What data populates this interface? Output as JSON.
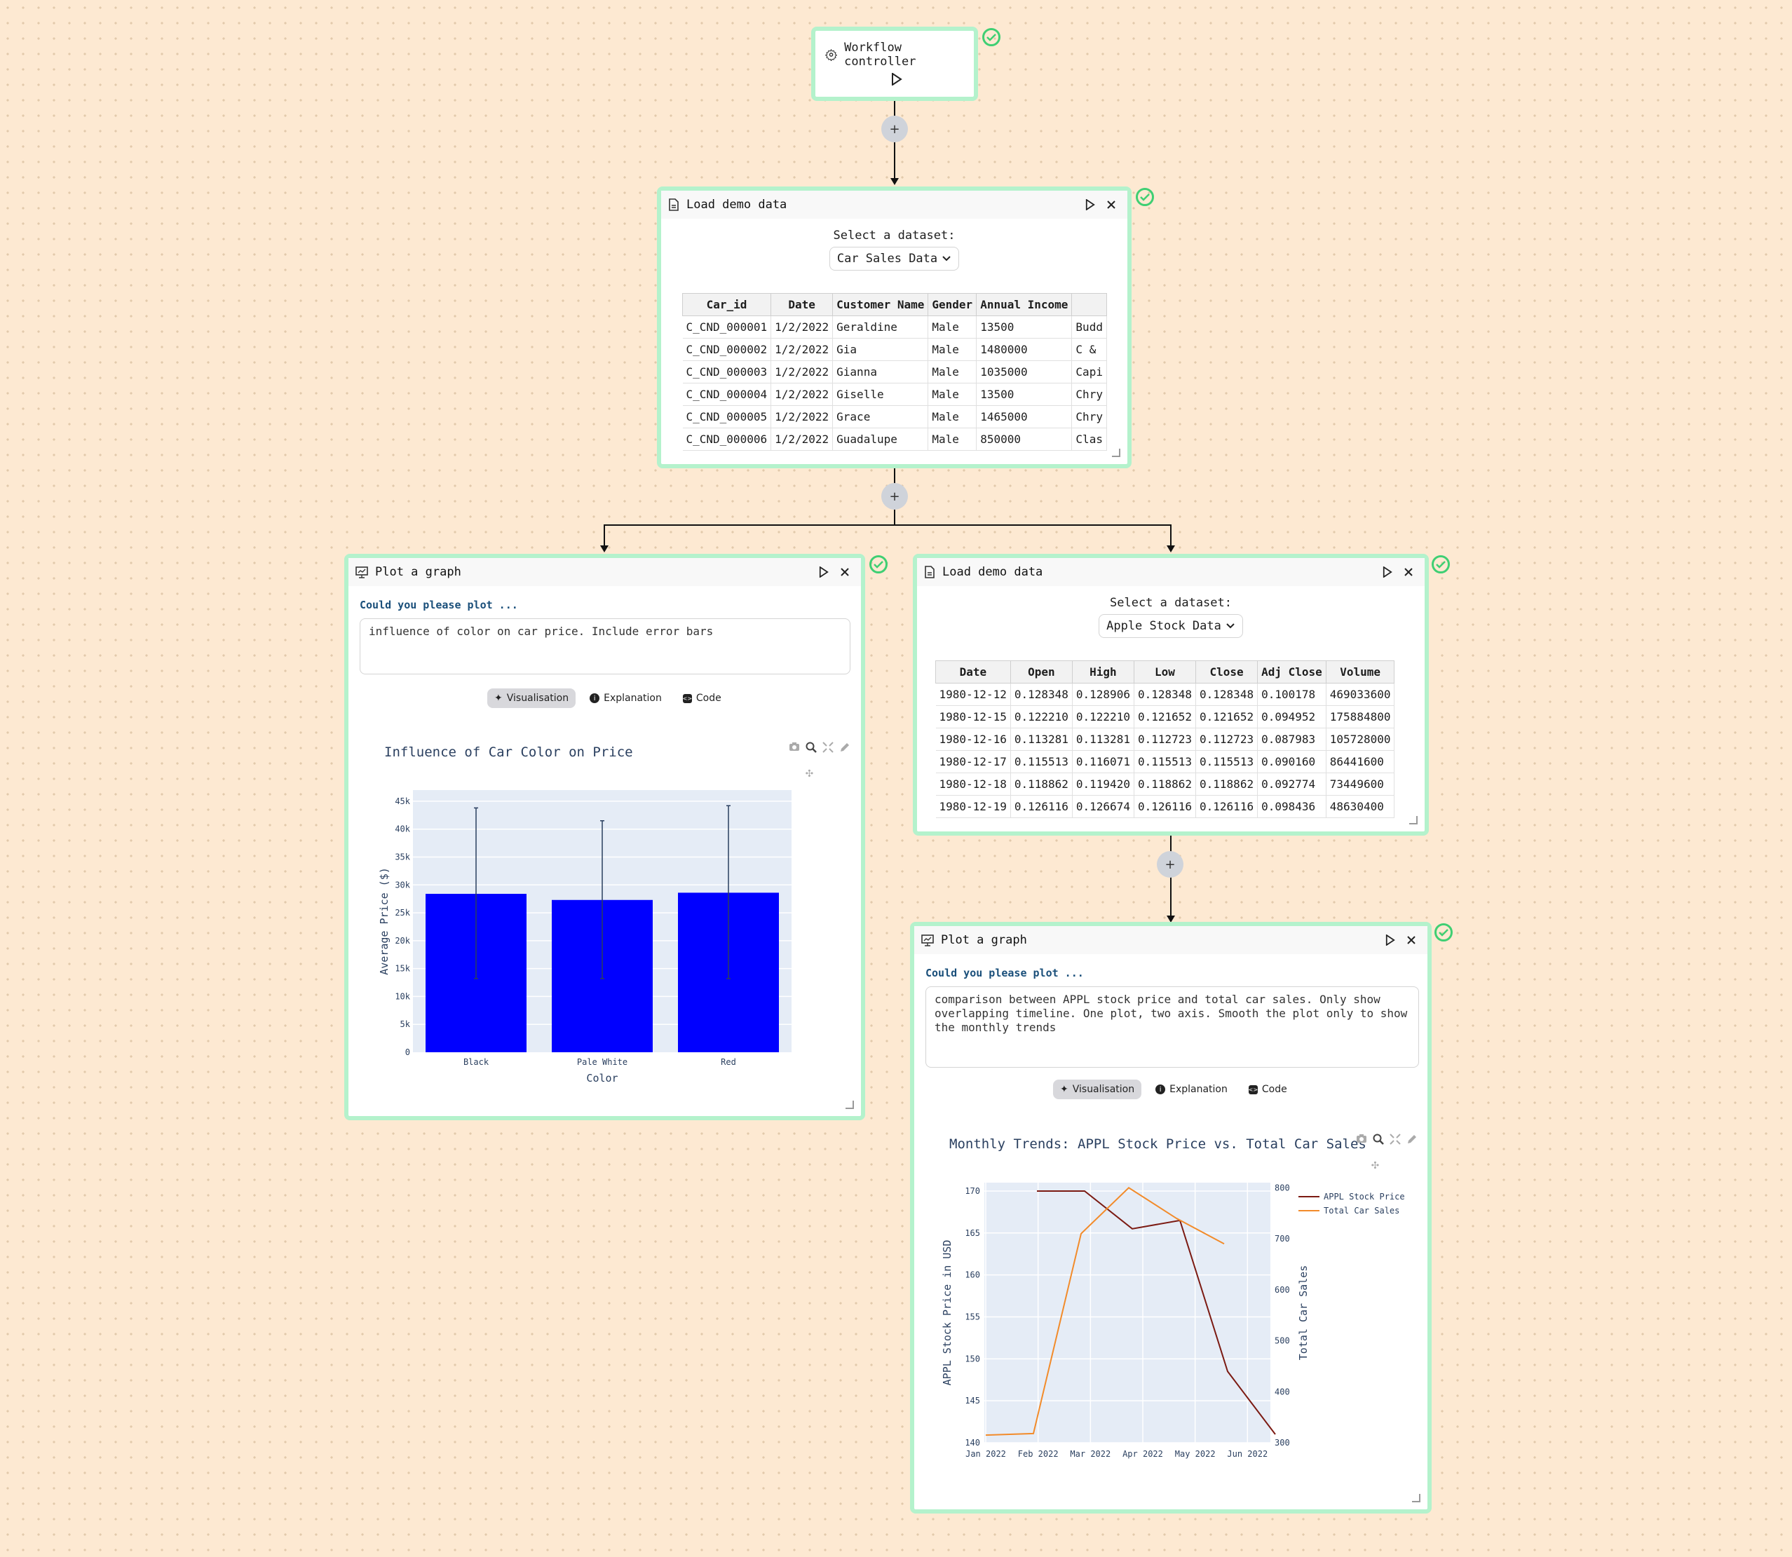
{
  "workflow": {
    "title": "Workflow controller"
  },
  "load1": {
    "title": "Load demo data",
    "select_label": "Select a dataset:",
    "selected": "Car Sales Data",
    "columns": [
      "Car_id",
      "Date",
      "Customer Name",
      "Gender",
      "Annual Income",
      ""
    ],
    "rows": [
      [
        "C_CND_000001",
        "1/2/2022",
        "Geraldine",
        "Male",
        "13500",
        "Budd"
      ],
      [
        "C_CND_000002",
        "1/2/2022",
        "Gia",
        "Male",
        "1480000",
        "C &"
      ],
      [
        "C_CND_000003",
        "1/2/2022",
        "Gianna",
        "Male",
        "1035000",
        "Capi"
      ],
      [
        "C_CND_000004",
        "1/2/2022",
        "Giselle",
        "Male",
        "13500",
        "Chry"
      ],
      [
        "C_CND_000005",
        "1/2/2022",
        "Grace",
        "Male",
        "1465000",
        "Chry"
      ],
      [
        "C_CND_000006",
        "1/2/2022",
        "Guadalupe",
        "Male",
        "850000",
        "Clas"
      ]
    ]
  },
  "plot1": {
    "title": "Plot a graph",
    "prompt_label": "Could you please plot ...",
    "prompt": "influence of color on car price. Include error bars",
    "tabs": [
      "Visualisation",
      "Explanation",
      "Code"
    ]
  },
  "load2": {
    "title": "Load demo data",
    "select_label": "Select a dataset:",
    "selected": "Apple Stock Data",
    "columns": [
      "Date",
      "Open",
      "High",
      "Low",
      "Close",
      "Adj Close",
      "Volume"
    ],
    "rows": [
      [
        "1980-12-12",
        "0.128348",
        "0.128906",
        "0.128348",
        "0.128348",
        "0.100178",
        "469033600"
      ],
      [
        "1980-12-15",
        "0.122210",
        "0.122210",
        "0.121652",
        "0.121652",
        "0.094952",
        "175884800"
      ],
      [
        "1980-12-16",
        "0.113281",
        "0.113281",
        "0.112723",
        "0.112723",
        "0.087983",
        "105728000"
      ],
      [
        "1980-12-17",
        "0.115513",
        "0.116071",
        "0.115513",
        "0.115513",
        "0.090160",
        "86441600"
      ],
      [
        "1980-12-18",
        "0.118862",
        "0.119420",
        "0.118862",
        "0.118862",
        "0.092774",
        "73449600"
      ],
      [
        "1980-12-19",
        "0.126116",
        "0.126674",
        "0.126116",
        "0.126116",
        "0.098436",
        "48630400"
      ]
    ]
  },
  "plot2": {
    "title": "Plot a graph",
    "prompt_label": "Could you please plot ...",
    "prompt": "comparison between APPL stock price and total car sales. Only show overlapping timeline. One plot, two axis. Smooth the plot only to show the monthly trends",
    "tabs": [
      "Visualisation",
      "Explanation",
      "Code"
    ]
  },
  "colors": {
    "node_border": "#b4f2cc",
    "check": "#3fcf73",
    "bar": "#0000ff",
    "stock": "#7b1a12",
    "sales": "#f28b2a",
    "plot_bg": "#e5ecf6"
  },
  "chart_data": [
    {
      "type": "bar",
      "title": "Influence of Car Color on Price",
      "categories": [
        "Black",
        "Pale White",
        "Red"
      ],
      "values": [
        28400,
        27300,
        28600
      ],
      "error_upper": [
        43800,
        41500,
        44200
      ],
      "error_lower": [
        13200,
        13200,
        13200
      ],
      "xlabel": "Color",
      "ylabel": "Average Price ($)",
      "ylim": [
        0,
        47000
      ],
      "yticks": [
        "0",
        "5k",
        "10k",
        "15k",
        "20k",
        "25k",
        "30k",
        "35k",
        "40k",
        "45k"
      ]
    },
    {
      "type": "line",
      "title": "Monthly Trends: APPL Stock Price vs. Total Car Sales",
      "x": [
        "Jan 2022",
        "Feb 2022",
        "Mar 2022",
        "Apr 2022",
        "May 2022",
        "Jun 2022"
      ],
      "series": [
        {
          "name": "APPL Stock Price",
          "axis": "left",
          "x_index": [
            1,
            2,
            3,
            4,
            5,
            6
          ],
          "values": [
            170,
            170,
            165.5,
            166.5,
            148.5,
            141
          ]
        },
        {
          "name": "Total Car Sales",
          "axis": "right",
          "x_index": [
            0,
            1,
            2,
            3,
            4,
            5
          ],
          "values": [
            315,
            318,
            710,
            800,
            740,
            690
          ]
        }
      ],
      "ylabel_left": "APPL Stock Price in USD",
      "ylabel_right": "Total Car Sales",
      "ylim_left": [
        140,
        171
      ],
      "ylim_right": [
        300,
        810
      ],
      "yticks_left": [
        "140",
        "145",
        "150",
        "155",
        "160",
        "165",
        "170"
      ],
      "yticks_right": [
        "300",
        "400",
        "500",
        "600",
        "700",
        "800"
      ],
      "legend": "top-right"
    }
  ]
}
